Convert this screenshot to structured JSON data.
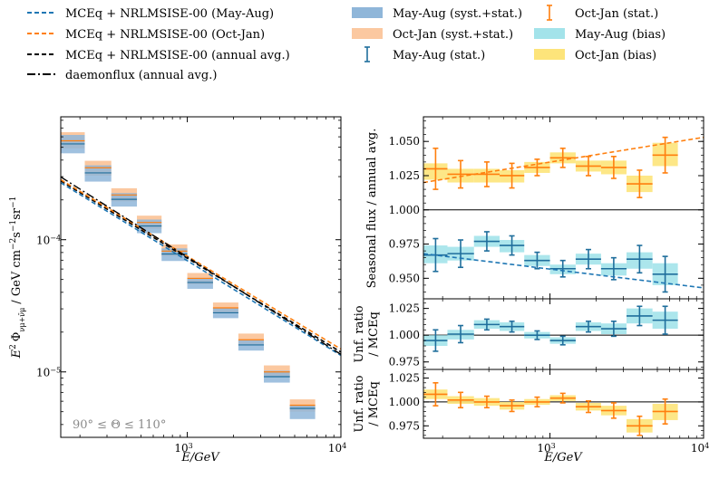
{
  "chart_data": {
    "type": "line",
    "legend": {
      "position": "top",
      "entries": [
        {
          "label": "MCEq + NRLMSISE-00 (May-Aug)",
          "kind": "line",
          "style": "dashed",
          "color": "#1f77b4"
        },
        {
          "label": "MCEq + NRLMSISE-00 (Oct-Jan)",
          "kind": "line",
          "style": "dashed",
          "color": "#ff7f0e"
        },
        {
          "label": "MCEq + NRLMSISE-00 (annual avg.)",
          "kind": "line",
          "style": "dashed",
          "color": "#000000"
        },
        {
          "label": "daemonflux (annual avg.)",
          "kind": "line",
          "style": "dashdot",
          "color": "#000000"
        },
        {
          "label": "May-Aug (syst.+stat.)",
          "kind": "patch",
          "color": "#8fb6d9"
        },
        {
          "label": "Oct-Jan (syst.+stat.)",
          "kind": "patch",
          "color": "#fbc8a0"
        },
        {
          "label": "May-Aug (stat.)",
          "kind": "errorbar",
          "color": "#1f6e9c"
        },
        {
          "label": "Oct-Jan (stat.)",
          "kind": "errorbar",
          "color": "#ff7f0e"
        },
        {
          "label": "May-Aug (bias)",
          "kind": "patch",
          "color": "#a3e3ea"
        },
        {
          "label": "Oct-Jan (bias)",
          "kind": "patch",
          "color": "#fde47a"
        }
      ]
    },
    "colors": {
      "may": "#1f77b4",
      "may_err": "#1f6e9c",
      "oct": "#ff7f0e",
      "may_syst": "#8fb6d9",
      "oct_syst": "#fbc8a0",
      "may_bias": "#a3e3ea",
      "oct_bias": "#fde47a"
    },
    "bins": {
      "edges": [
        150,
        215,
        320,
        470,
        680,
        1000,
        1470,
        2150,
        3150,
        4650,
        6800,
        10000
      ],
      "centers": [
        180,
        262,
        388,
        565,
        825,
        1212,
        1780,
        2600,
        3830,
        5620,
        8250
      ]
    },
    "panels": {
      "flux": {
        "xlabel": "E/GeV",
        "ylabel_parts": {
          "base": "E",
          "sup": "2",
          "phi": "Φ",
          "sub": "νμ+ν̄μ",
          "units_main": "/ GeV cm",
          "sup1": "−2",
          "u2": "s",
          "sup2": "−1",
          "u3": "sr",
          "sup3": "−1"
        },
        "xlim": [
          150,
          10000
        ],
        "ylim": [
          3.2e-06,
          0.00085
        ],
        "x_ticks": [
          1000,
          10000
        ],
        "x_tick_labels": [
          [
            "10",
            "3"
          ],
          [
            "10",
            "4"
          ]
        ],
        "y_ticks": [
          1e-05,
          0.0001
        ],
        "y_tick_labels": [
          [
            "10",
            "−5"
          ],
          [
            "10",
            "−4"
          ]
        ],
        "annotation": "90° ≤ Θ ≤ 110°",
        "models": {
          "annual_ref": {
            "E0": 1000,
            "flux": 7.25e-05,
            "gamma": 0.71
          },
          "may_ratio": {
            "at_150": 0.968,
            "at_10000": 0.943
          },
          "oct_ratio": {
            "at_150": 1.02,
            "at_10000": 1.053
          },
          "daemon_ratio": {
            "at_150": 1.07,
            "at_10000": 0.96
          }
        },
        "may_centers": [
          0.00053,
          0.00032,
          0.000202,
          0.000127,
          7.8e-05,
          4.75e-05,
          2.8e-05,
          1.6e-05,
          9.2e-06,
          5.3e-06,
          0
        ],
        "oct_centers": [
          0.00056,
          0.00035,
          0.000218,
          0.000135,
          8.2e-05,
          5.1e-05,
          3.05e-05,
          1.75e-05,
          1e-05,
          5.6e-06,
          0
        ],
        "may_band_low": [
          0.00045,
          0.000275,
          0.000178,
          0.000112,
          6.9e-05,
          4.25e-05,
          2.55e-05,
          1.45e-05,
          8.3e-06,
          4.4e-06,
          0
        ],
        "may_band_high": [
          0.00062,
          0.000365,
          0.000225,
          0.000142,
          8.6e-05,
          5.15e-05,
          3.05e-05,
          1.75e-05,
          1.02e-05,
          5.6e-06,
          0
        ],
        "oct_band_low": [
          0.00049,
          0.000305,
          0.000195,
          0.000121,
          7.5e-05,
          4.6e-05,
          2.8e-05,
          1.6e-05,
          9.1e-06,
          5e-06,
          0
        ],
        "oct_band_high": [
          0.00065,
          0.000395,
          0.000245,
          0.000152,
          9.2e-05,
          5.6e-05,
          3.35e-05,
          1.95e-05,
          1.12e-05,
          6.2e-06,
          0
        ]
      },
      "seasonal": {
        "ylabel": "Seasonal flux / annual avg.",
        "ylim": [
          0.935,
          1.068
        ],
        "y_ticks": [
          0.95,
          0.975,
          1.0,
          1.025,
          1.05
        ],
        "y_tick_labels": [
          "0.950",
          "0.975",
          "1.000",
          "1.025",
          "1.050"
        ],
        "reference_line": 1.0,
        "oct_points": [
          1.03,
          1.026,
          1.026,
          1.025,
          1.031,
          1.038,
          1.032,
          1.031,
          1.019,
          1.04
        ],
        "oct_err": [
          0.015,
          0.01,
          0.009,
          0.009,
          0.006,
          0.007,
          0.007,
          0.008,
          0.01,
          0.013
        ],
        "oct_bias_low": [
          1.022,
          1.02,
          1.02,
          1.02,
          1.027,
          1.034,
          1.028,
          1.026,
          1.013,
          1.032
        ],
        "oct_bias_high": [
          1.034,
          1.03,
          1.03,
          1.029,
          1.035,
          1.042,
          1.036,
          1.036,
          1.025,
          1.049
        ],
        "may_points": [
          0.967,
          0.968,
          0.977,
          0.974,
          0.963,
          0.957,
          0.964,
          0.957,
          0.964,
          0.953
        ],
        "may_err": [
          0.012,
          0.01,
          0.007,
          0.007,
          0.006,
          0.006,
          0.007,
          0.008,
          0.01,
          0.013
        ],
        "may_bias_low": [
          0.961,
          0.963,
          0.973,
          0.969,
          0.959,
          0.953,
          0.96,
          0.952,
          0.957,
          0.945
        ],
        "may_bias_high": [
          0.974,
          0.973,
          0.981,
          0.978,
          0.967,
          0.96,
          0.968,
          0.961,
          0.969,
          0.961
        ]
      },
      "unf_may": {
        "ylabel_line1": "Unf. ratio",
        "ylabel_line2": "/ MCEq",
        "ylim": [
          0.968,
          1.034
        ],
        "y_ticks": [
          0.975,
          1.0,
          1.025
        ],
        "y_tick_labels": [
          "0.975",
          "1.000",
          "1.025"
        ],
        "reference_line": 1.0,
        "points": [
          0.995,
          1.001,
          1.01,
          1.008,
          1.0,
          0.995,
          1.008,
          1.006,
          1.018,
          1.014
        ],
        "err": [
          0.01,
          0.008,
          0.005,
          0.005,
          0.004,
          0.004,
          0.005,
          0.007,
          0.009,
          0.013
        ],
        "bias_low": [
          0.99,
          0.996,
          1.006,
          1.004,
          0.997,
          0.992,
          1.004,
          1.001,
          1.011,
          1.006
        ],
        "bias_high": [
          1.0,
          1.005,
          1.014,
          1.012,
          1.003,
          0.998,
          1.012,
          1.011,
          1.025,
          1.022
        ]
      },
      "unf_oct": {
        "ylabel_line1": "Unf. ratio",
        "ylabel_line2": "/ MCEq",
        "xlabel": "E/GeV",
        "ylim": [
          0.962,
          1.034
        ],
        "y_ticks": [
          0.975,
          1.0,
          1.025
        ],
        "y_tick_labels": [
          "0.975",
          "1.000",
          "1.025"
        ],
        "x_ticks": [
          1000,
          10000
        ],
        "x_tick_labels": [
          [
            "10",
            "3"
          ],
          [
            "10",
            "4"
          ]
        ],
        "reference_line": 1.0,
        "points": [
          1.008,
          1.002,
          1.0,
          0.996,
          1.0,
          1.004,
          0.995,
          0.991,
          0.975,
          0.99
        ],
        "err": [
          0.012,
          0.008,
          0.006,
          0.006,
          0.005,
          0.005,
          0.006,
          0.008,
          0.01,
          0.013
        ],
        "bias_low": [
          1.003,
          0.998,
          0.996,
          0.992,
          0.997,
          1.001,
          0.991,
          0.986,
          0.968,
          0.981
        ],
        "bias_high": [
          1.013,
          1.006,
          1.004,
          1.0,
          1.003,
          1.007,
          0.999,
          0.996,
          0.982,
          0.998
        ]
      }
    }
  }
}
